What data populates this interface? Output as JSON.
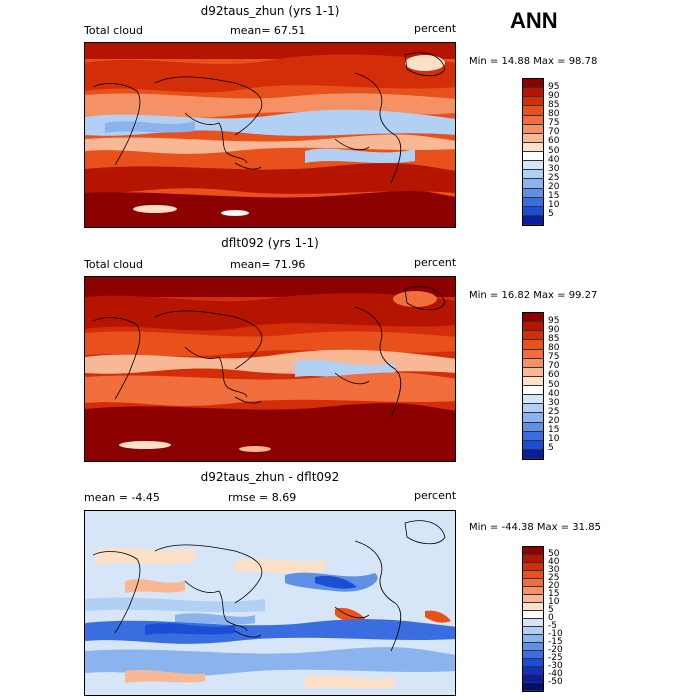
{
  "season": "ANN",
  "panels": [
    {
      "title": "d92taus_zhun (yrs 1-1)",
      "left_label": "Total cloud",
      "center_label": "mean=  67.51",
      "right_label": "percent",
      "minmax": "Min =  14.88 Max =  98.78",
      "levels": [
        "95",
        "90",
        "85",
        "80",
        "75",
        "70",
        "60",
        "50",
        "40",
        "30",
        "25",
        "20",
        "15",
        "10",
        "5"
      ],
      "colors": [
        "#8c0000",
        "#b41400",
        "#d42e08",
        "#e8501c",
        "#f06e3c",
        "#f59265",
        "#f8b896",
        "#fde0c8",
        "#ffffff",
        "#d6e6f8",
        "#b2d0f4",
        "#8bb4ee",
        "#5f90e6",
        "#3a6ee0",
        "#1a4ed6",
        "#0a1e9c"
      ]
    },
    {
      "title": "dflt092 (yrs 1-1)",
      "left_label": "Total cloud",
      "center_label": "mean=  71.96",
      "right_label": "percent",
      "minmax": "Min =  16.82 Max =  99.27",
      "levels": [
        "95",
        "90",
        "85",
        "80",
        "75",
        "70",
        "60",
        "50",
        "40",
        "30",
        "25",
        "20",
        "15",
        "10",
        "5"
      ],
      "colors": [
        "#8c0000",
        "#b41400",
        "#d42e08",
        "#e8501c",
        "#f06e3c",
        "#f59265",
        "#f8b896",
        "#fde0c8",
        "#ffffff",
        "#d6e6f8",
        "#b2d0f4",
        "#8bb4ee",
        "#5f90e6",
        "#3a6ee0",
        "#1a4ed6",
        "#0a1e9c"
      ]
    },
    {
      "title": "d92taus_zhun - dflt092",
      "left_label": "mean =  -4.45",
      "center_label": "rmse =   8.69",
      "right_label": "percent",
      "minmax": "Min = -44.38 Max =  31.85",
      "levels": [
        "50",
        "40",
        "30",
        "25",
        "20",
        "15",
        "10",
        "5",
        "0",
        "-5",
        "-10",
        "-15",
        "-20",
        "-25",
        "-30",
        "-40",
        "-50"
      ],
      "colors": [
        "#8c0000",
        "#b41400",
        "#d42e08",
        "#e8501c",
        "#f06e3c",
        "#f59265",
        "#f8b896",
        "#fde0c8",
        "#ffffff",
        "#d6e6f8",
        "#b2d0f4",
        "#8bb4ee",
        "#5f90e6",
        "#3a6ee0",
        "#1a4ed6",
        "#1030c0",
        "#0a1e9c",
        "#050e70"
      ]
    }
  ]
}
